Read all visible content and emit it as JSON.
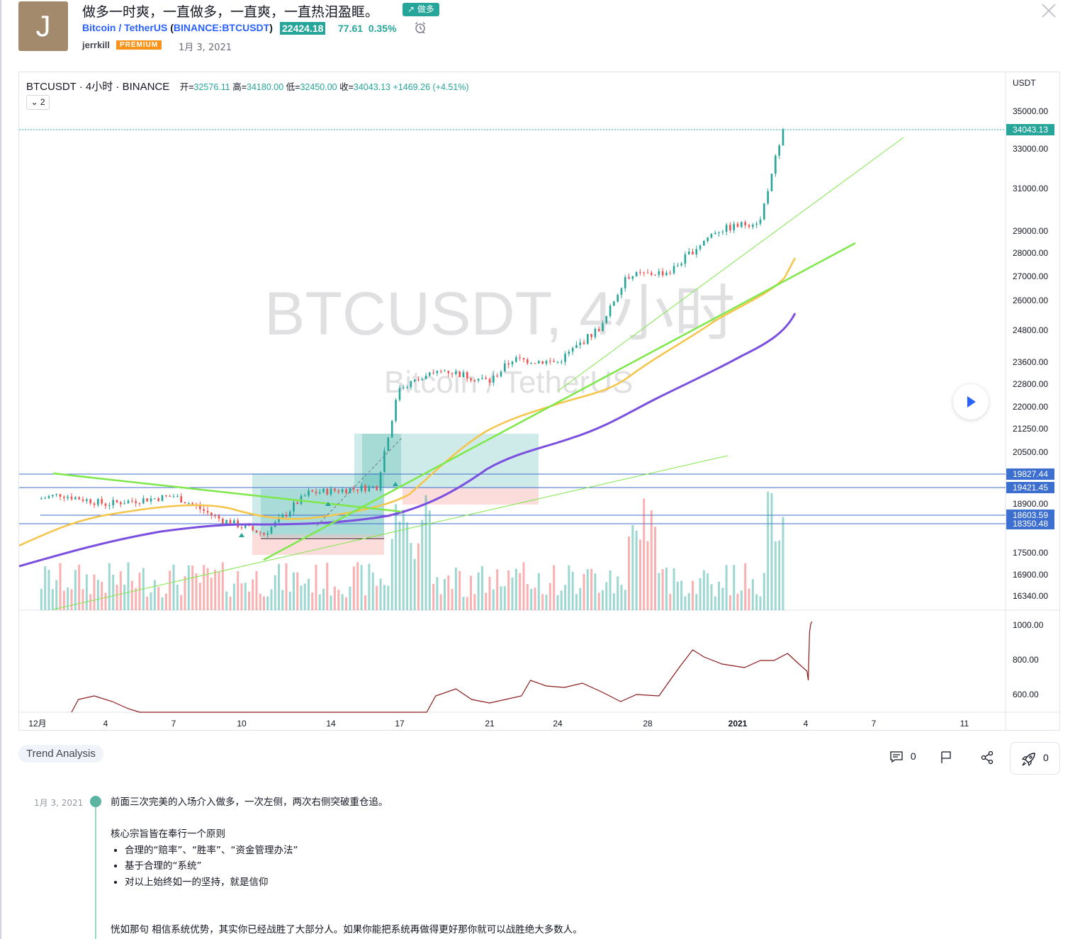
{
  "header": {
    "avatar_letter": "J",
    "title": "做多一时爽，一直做多，一直爽，一直热泪盈眶。",
    "direction_badge": "↗ 做多",
    "symbol_name": "Bitcoin / TetherUS",
    "symbol_ticker": "BINANCE:BTCUSDT",
    "price": "22424.18",
    "change": "77.61",
    "change_pct": "0.35%",
    "author": "jerrkill",
    "author_badge": "PREMIUM",
    "publish_date": "1月 3, 2021"
  },
  "chart": {
    "symbol_line": "BTCUSDT · 4小时 · BINANCE",
    "open_label": "开=",
    "open": "32576.11",
    "high_label": "高=",
    "high": "34180.00",
    "low_label": "低=",
    "low": "32450.00",
    "close_label": "收=",
    "close": "34043.13",
    "change": "+1469.26 (+4.51%)",
    "collapse_count": "2",
    "watermark_main": "BTCUSDT, 4小时",
    "watermark_sub": "Bitcoin / TetherUS",
    "currency": "USDT",
    "last_price_label": "34043.13",
    "level_labels": [
      "19827.44",
      "19421.45",
      "18603.59",
      "18350.48"
    ],
    "colors": {
      "up": "#26a69a",
      "down": "#ef5350",
      "ma_fast": "#f5c54a",
      "ma_slow": "#7b4fe0",
      "trend": "#7ee84a",
      "level": "#3d6fd0",
      "indicator": "#8b1a1a",
      "box_target": "#26a69a",
      "box_stop": "#ef5350"
    }
  },
  "chart_data": {
    "type": "candlestick",
    "symbol": "BTCUSDT",
    "interval": "4小时",
    "exchange": "BINANCE",
    "price_axis": [
      "35000.00",
      "33000.00",
      "31000.00",
      "29000.00",
      "28000.00",
      "27000.00",
      "26000.00",
      "24800.00",
      "23600.00",
      "22800.00",
      "22000.00",
      "21250.00",
      "20500.00",
      "18900.00",
      "17500.00",
      "16900.00",
      "16340.00"
    ],
    "time_axis": [
      "12月",
      "4",
      "7",
      "10",
      "14",
      "17",
      "21",
      "24",
      "28",
      "2021",
      "4",
      "7",
      "11"
    ],
    "indicator_axis": [
      "1000.00",
      "800.00",
      "600.00"
    ],
    "horizontal_levels": [
      19827.44,
      19421.45,
      18603.59,
      18350.48
    ],
    "last_price": 34043.13,
    "close_path_approx": [
      {
        "x": "12月 1",
        "y": 19050
      },
      {
        "x": "12月 2",
        "y": 19200
      },
      {
        "x": "12月 4",
        "y": 18900
      },
      {
        "x": "12月 7",
        "y": 19150
      },
      {
        "x": "12月 9",
        "y": 18500
      },
      {
        "x": "12月 11",
        "y": 18050
      },
      {
        "x": "12月 13",
        "y": 19250
      },
      {
        "x": "12月 16",
        "y": 19450
      },
      {
        "x": "12月 17",
        "y": 22700
      },
      {
        "x": "12月 19",
        "y": 23300
      },
      {
        "x": "12月 21",
        "y": 22900
      },
      {
        "x": "12月 22",
        "y": 23700
      },
      {
        "x": "12月 24",
        "y": 23600
      },
      {
        "x": "12月 26",
        "y": 25000
      },
      {
        "x": "12月 27",
        "y": 27000
      },
      {
        "x": "12月 29",
        "y": 27200
      },
      {
        "x": "12月 31",
        "y": 29000
      },
      {
        "x": "1月 2",
        "y": 29500
      },
      {
        "x": "1月 3",
        "y": 34043.13
      }
    ]
  },
  "footer": {
    "tag": "Trend Analysis",
    "comments_count": "0",
    "boost_count": "0"
  },
  "description": {
    "date": "1月 3, 2021",
    "para1": "前面三次完美的入场介入做多，一次左侧，两次右侧突破重仓追。",
    "para2": "核心宗旨皆在奉行一个原则",
    "bullets": [
      "合理的“赔率”、“胜率”、“资金管理办法”",
      "基于合理的“系统”",
      "对以上始终如一的坚持，就是信仰"
    ],
    "para3": "恍如那句 相信系统优势，其实你已经战胜了大部分人。如果你能把系统再做得更好那你就可以战胜绝大多数人。"
  }
}
